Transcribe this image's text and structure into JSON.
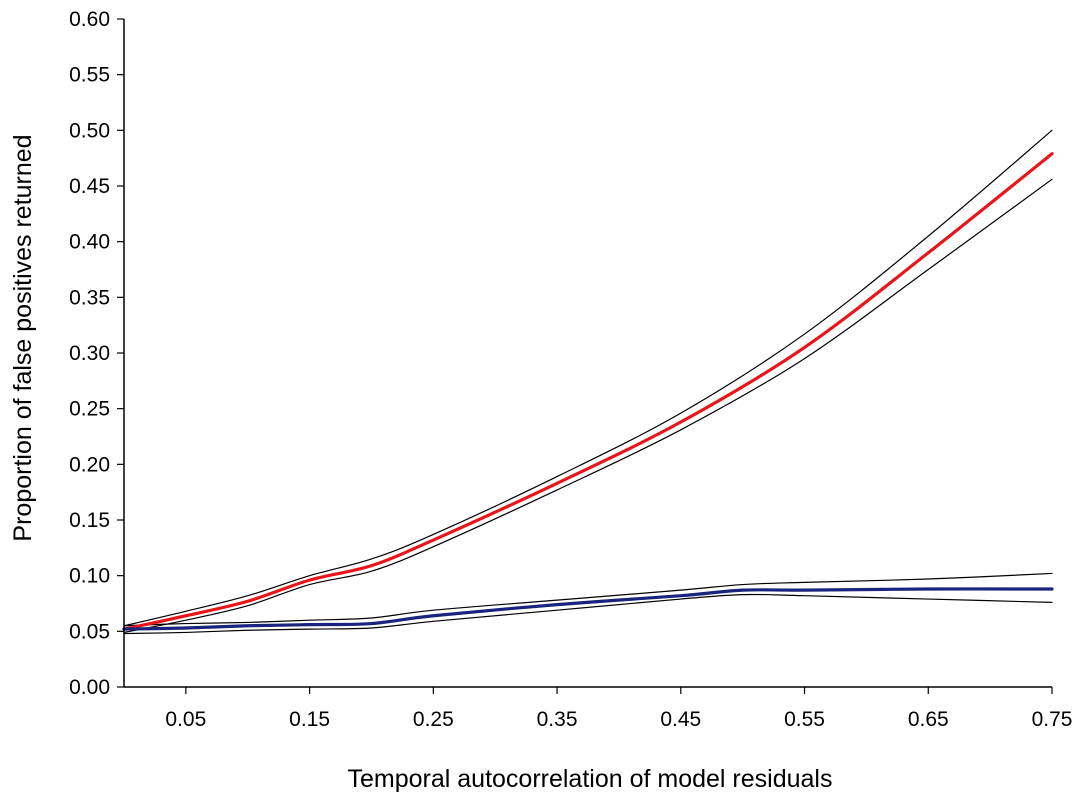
{
  "chart_data": {
    "type": "line",
    "title": "",
    "xlabel": "Temporal autocorrelation of model residuals",
    "ylabel": "Proportion of false positives returned",
    "xlim": [
      0.0,
      0.75
    ],
    "ylim": [
      0.0,
      0.6
    ],
    "x_ticks": [
      0.05,
      0.15,
      0.25,
      0.35,
      0.45,
      0.55,
      0.65,
      0.75
    ],
    "x_tick_labels": [
      "0.05",
      "0.15",
      "0.25",
      "0.35",
      "0.45",
      "0.55",
      "0.65",
      "0.75"
    ],
    "y_ticks": [
      0.0,
      0.05,
      0.1,
      0.15,
      0.2,
      0.25,
      0.3,
      0.35,
      0.4,
      0.45,
      0.5,
      0.55,
      0.6
    ],
    "y_tick_labels": [
      "0.00",
      "0.05",
      "0.10",
      "0.15",
      "0.20",
      "0.25",
      "0.30",
      "0.35",
      "0.40",
      "0.45",
      "0.50",
      "0.55",
      "0.60"
    ],
    "grid": false,
    "legend": "none",
    "series": [
      {
        "color": "#e8161b",
        "role": "mean",
        "x": [
          0.0,
          0.05,
          0.1,
          0.15,
          0.2,
          0.25,
          0.35,
          0.45,
          0.55,
          0.65,
          0.75
        ],
        "y": [
          0.052,
          0.064,
          0.077,
          0.096,
          0.109,
          0.132,
          0.183,
          0.238,
          0.305,
          0.39,
          0.479
        ]
      },
      {
        "color": "#000000",
        "role": "upper bound",
        "x": [
          0.0,
          0.05,
          0.1,
          0.15,
          0.2,
          0.25,
          0.35,
          0.45,
          0.55,
          0.65,
          0.75
        ],
        "y": [
          0.055,
          0.068,
          0.082,
          0.1,
          0.115,
          0.137,
          0.189,
          0.246,
          0.317,
          0.405,
          0.5
        ]
      },
      {
        "color": "#000000",
        "role": "lower bound",
        "x": [
          0.0,
          0.05,
          0.1,
          0.15,
          0.2,
          0.25,
          0.35,
          0.45,
          0.55,
          0.65,
          0.75
        ],
        "y": [
          0.049,
          0.06,
          0.073,
          0.092,
          0.104,
          0.126,
          0.177,
          0.231,
          0.295,
          0.375,
          0.456
        ]
      },
      {
        "color": "#1a237e",
        "role": "mean",
        "x": [
          0.0,
          0.05,
          0.1,
          0.15,
          0.2,
          0.25,
          0.35,
          0.45,
          0.5,
          0.55,
          0.65,
          0.75
        ],
        "y": [
          0.052,
          0.053,
          0.055,
          0.056,
          0.057,
          0.064,
          0.074,
          0.082,
          0.087,
          0.087,
          0.088,
          0.088
        ]
      },
      {
        "color": "#000000",
        "role": "upper bound",
        "x": [
          0.0,
          0.05,
          0.1,
          0.15,
          0.2,
          0.25,
          0.35,
          0.45,
          0.5,
          0.55,
          0.65,
          0.75
        ],
        "y": [
          0.055,
          0.057,
          0.058,
          0.06,
          0.062,
          0.069,
          0.078,
          0.087,
          0.092,
          0.094,
          0.097,
          0.102
        ]
      },
      {
        "color": "#000000",
        "role": "lower bound",
        "x": [
          0.0,
          0.05,
          0.1,
          0.15,
          0.2,
          0.25,
          0.35,
          0.45,
          0.5,
          0.55,
          0.65,
          0.75
        ],
        "y": [
          0.048,
          0.049,
          0.051,
          0.052,
          0.053,
          0.059,
          0.069,
          0.079,
          0.083,
          0.082,
          0.079,
          0.076
        ]
      }
    ]
  }
}
